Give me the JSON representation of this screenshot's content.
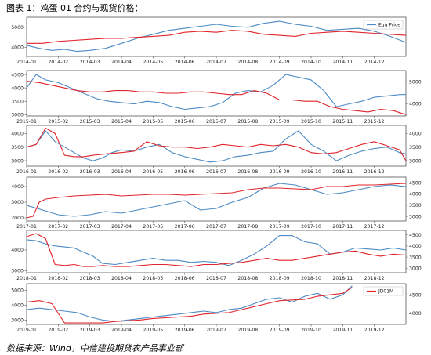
{
  "caption": "图表 1：鸡蛋 01 合约与现货价格：",
  "source": "数据来源：Wind，中信建投期货农产品事业部",
  "colors": {
    "blue": "#4c8ac3",
    "red": "#e0242b",
    "frame": "#555555"
  },
  "chart_data": [
    {
      "type": "line",
      "title": "",
      "xlabel": "",
      "ylabel": "",
      "x_ticks": [
        "2014-01",
        "2014-02",
        "2014-03",
        "2014-04",
        "2014-05",
        "2014-06",
        "2014-07",
        "2014-08",
        "2014-09",
        "2014-10",
        "2014-11",
        "2014-12"
      ],
      "x_range": [
        0,
        12
      ],
      "left_axis": {
        "ticks": [
          4000,
          5000
        ],
        "range": [
          3550,
          5500
        ]
      },
      "right_axis": null,
      "legend": [
        "Egg Price"
      ],
      "legend_location": "top-right",
      "series": [
        {
          "name": "Egg Price",
          "color": "blue",
          "axis": "left",
          "x": [
            0,
            0.4,
            0.8,
            1.2,
            1.6,
            2,
            2.5,
            3,
            3.5,
            4,
            4.5,
            5,
            5.5,
            6,
            6.5,
            7,
            7.5,
            8,
            8.5,
            9,
            9.5,
            10,
            10.5,
            11,
            11.5,
            12
          ],
          "y": [
            4100,
            3950,
            3850,
            3900,
            3800,
            3850,
            3950,
            4200,
            4450,
            4650,
            4850,
            4950,
            5050,
            5150,
            5050,
            5000,
            5200,
            5300,
            5150,
            5050,
            4850,
            4900,
            4950,
            4800,
            4550,
            4250
          ]
        },
        {
          "color": "red",
          "axis": "left",
          "x": [
            0,
            0.5,
            1,
            1.5,
            2,
            2.5,
            3,
            3.5,
            4,
            4.5,
            5,
            5.5,
            6,
            6.5,
            7,
            7.5,
            8,
            8.5,
            9,
            9.5,
            10,
            10.5,
            11,
            11.5,
            12
          ],
          "y": [
            4200,
            4200,
            4300,
            4350,
            4400,
            4450,
            4450,
            4500,
            4550,
            4600,
            4750,
            4800,
            4750,
            4850,
            4800,
            4650,
            4600,
            4550,
            4700,
            4750,
            4800,
            4750,
            4700,
            4650,
            4600
          ]
        }
      ]
    },
    {
      "type": "line",
      "title": "",
      "xlabel": "",
      "ylabel": "",
      "x_ticks": [
        "2015-01",
        "2015-02",
        "2015-03",
        "2015-04",
        "2015-05",
        "2015-06",
        "2015-07",
        "2015-08",
        "2015-09",
        "2015-10",
        "2015-11",
        "2015-12"
      ],
      "x_range": [
        0,
        12
      ],
      "left_axis": {
        "ticks": [
          3000,
          3500,
          4000,
          4500
        ],
        "range": [
          2950,
          4650
        ]
      },
      "right_axis": {
        "ticks": [
          4000,
          5000
        ],
        "range": [
          3450,
          5500
        ]
      },
      "legend": [],
      "series": [
        {
          "color": "blue",
          "axis": "left",
          "x": [
            0,
            0.3,
            0.6,
            1,
            1.4,
            1.8,
            2.2,
            2.6,
            3,
            3.4,
            3.8,
            4.2,
            4.6,
            5,
            5.4,
            5.8,
            6.2,
            6.6,
            7,
            7.4,
            7.8,
            8.2,
            8.6,
            9,
            9.4,
            9.8,
            10.2,
            10.6,
            11,
            11.4,
            11.8,
            12
          ],
          "y": [
            4000,
            4500,
            4300,
            4200,
            4000,
            3800,
            3600,
            3500,
            3450,
            3400,
            3500,
            3450,
            3300,
            3200,
            3250,
            3300,
            3450,
            3800,
            3900,
            3850,
            4100,
            4500,
            4400,
            4300,
            3900,
            3300,
            3400,
            3500,
            3650,
            3700,
            3750,
            3750
          ]
        },
        {
          "color": "red",
          "axis": "left",
          "x": [
            0,
            0.4,
            0.8,
            1.2,
            1.6,
            2,
            2.4,
            2.8,
            3.2,
            3.6,
            4,
            4.4,
            4.8,
            5.2,
            5.6,
            6,
            6.4,
            6.8,
            7.2,
            7.6,
            8,
            8.4,
            8.8,
            9.2,
            9.6,
            10,
            10.4,
            10.8,
            11.2,
            11.6,
            12
          ],
          "y": [
            4250,
            4200,
            4100,
            4000,
            3900,
            3850,
            3850,
            3900,
            3900,
            3850,
            3850,
            3800,
            3800,
            3850,
            3850,
            3800,
            3750,
            3750,
            3900,
            3800,
            3550,
            3550,
            3500,
            3500,
            3300,
            3200,
            3150,
            3100,
            3200,
            3150,
            3000
          ]
        }
      ]
    },
    {
      "type": "line",
      "title": "",
      "xlabel": "",
      "ylabel": "",
      "x_ticks": [
        "2016-01",
        "2016-02",
        "2016-03",
        "2016-04",
        "2016-05",
        "2016-06",
        "2016-07",
        "2016-08",
        "2016-09",
        "2016-10",
        "2016-11",
        "2016-12"
      ],
      "x_range": [
        0,
        12
      ],
      "left_axis": {
        "ticks": [
          3000,
          3500,
          4000
        ],
        "range": [
          2800,
          4300
        ]
      },
      "right_axis": {
        "ticks": [
          3000,
          3500,
          4000
        ],
        "range": [
          2800,
          4300
        ]
      },
      "legend": [],
      "series": [
        {
          "color": "blue",
          "axis": "left",
          "x": [
            0,
            0.3,
            0.6,
            0.9,
            1.2,
            1.5,
            1.8,
            2.1,
            2.4,
            2.7,
            3,
            3.4,
            3.8,
            4.2,
            4.6,
            5,
            5.4,
            5.8,
            6.2,
            6.6,
            7,
            7.4,
            7.8,
            8.2,
            8.6,
            9,
            9.4,
            9.8,
            10.2,
            10.6,
            11,
            11.4,
            11.8,
            12
          ],
          "y": [
            3500,
            3600,
            4100,
            3700,
            3500,
            3300,
            3100,
            3000,
            3100,
            3300,
            3400,
            3350,
            3500,
            3600,
            3300,
            3150,
            3050,
            2950,
            3000,
            3150,
            3200,
            3300,
            3350,
            3800,
            4100,
            3600,
            3350,
            3000,
            3200,
            3350,
            3450,
            3500,
            3300,
            3250
          ]
        },
        {
          "color": "red",
          "axis": "left",
          "x": [
            0,
            0.3,
            0.6,
            0.9,
            1.2,
            1.5,
            1.8,
            2.1,
            2.5,
            3,
            3.4,
            3.8,
            4.2,
            4.6,
            5,
            5.4,
            5.8,
            6.2,
            6.6,
            7,
            7.4,
            7.8,
            8.2,
            8.6,
            9,
            9.4,
            9.8,
            10.2,
            10.6,
            11,
            11.4,
            11.8,
            12
          ],
          "y": [
            3500,
            3600,
            4200,
            4000,
            3200,
            3150,
            3150,
            3200,
            3250,
            3300,
            3350,
            3700,
            3550,
            3500,
            3500,
            3450,
            3500,
            3600,
            3550,
            3500,
            3600,
            3550,
            3600,
            3500,
            3300,
            3250,
            3300,
            3450,
            3600,
            3700,
            3550,
            3400,
            3000
          ]
        }
      ]
    },
    {
      "type": "line",
      "title": "",
      "xlabel": "",
      "ylabel": "",
      "x_ticks": [
        "2017-01",
        "2017-02",
        "2017-03",
        "2017-04",
        "2017-05",
        "2017-06",
        "2017-07",
        "2017-08",
        "2017-09",
        "2017-10",
        "2017-11",
        "2017-12"
      ],
      "x_range": [
        0,
        12
      ],
      "left_axis": {
        "ticks": [
          2000,
          3000,
          4000
        ],
        "range": [
          1800,
          4600
        ]
      },
      "right_axis": {
        "ticks": [
          3000,
          3500,
          4000,
          4500
        ],
        "range": [
          2800,
          4750
        ]
      },
      "legend": [],
      "series": [
        {
          "color": "blue",
          "axis": "left",
          "x": [
            0,
            0.5,
            1,
            1.5,
            2,
            2.5,
            3,
            3.5,
            4,
            4.5,
            5,
            5.5,
            6,
            6.5,
            7,
            7.5,
            8,
            8.5,
            9,
            9.5,
            10,
            10.5,
            11,
            11.5,
            12
          ],
          "y": [
            2800,
            2500,
            2200,
            2100,
            2200,
            2400,
            2300,
            2500,
            2700,
            2900,
            3100,
            2500,
            2600,
            3000,
            3300,
            3900,
            4200,
            4100,
            3800,
            3500,
            3600,
            3800,
            4000,
            4100,
            4000
          ]
        },
        {
          "color": "red",
          "axis": "left",
          "x": [
            0,
            0.2,
            0.4,
            0.6,
            1,
            1.5,
            2,
            2.5,
            3,
            3.5,
            4,
            4.5,
            5,
            5.5,
            6,
            6.5,
            7,
            7.5,
            8,
            8.5,
            9,
            9.5,
            10,
            10.5,
            11,
            11.5,
            12
          ],
          "y": [
            2000,
            2100,
            3000,
            3200,
            3300,
            3400,
            3450,
            3500,
            3400,
            3450,
            3500,
            3500,
            3450,
            3500,
            3550,
            3600,
            3800,
            3900,
            3900,
            3850,
            3800,
            4000,
            4000,
            4100,
            4100,
            4150,
            4200
          ]
        }
      ]
    },
    {
      "type": "line",
      "title": "",
      "xlabel": "",
      "ylabel": "",
      "x_ticks": [
        "2018-01",
        "2018-02",
        "2018-03",
        "2018-04",
        "2018-05",
        "2018-06",
        "2018-07",
        "2018-08",
        "2018-09",
        "2018-10",
        "2018-11",
        "2018-12"
      ],
      "x_range": [
        0,
        12
      ],
      "left_axis": {
        "ticks": [
          3000,
          4000
        ],
        "range": [
          2900,
          4950
        ]
      },
      "right_axis": {
        "ticks": [
          3000,
          3500,
          4000,
          4500
        ],
        "range": [
          2800,
          4700
        ]
      },
      "legend": [],
      "series": [
        {
          "color": "blue",
          "axis": "left",
          "x": [
            0,
            0.3,
            0.6,
            0.9,
            1.2,
            1.5,
            1.8,
            2.1,
            2.4,
            2.8,
            3.2,
            3.6,
            4,
            4.4,
            4.8,
            5.2,
            5.6,
            6,
            6.4,
            6.8,
            7.2,
            7.6,
            8,
            8.4,
            8.8,
            9.2,
            9.6,
            10,
            10.4,
            10.8,
            11.2,
            11.6,
            12
          ],
          "y": [
            4500,
            4450,
            4300,
            4200,
            4150,
            4100,
            3900,
            3700,
            3350,
            3300,
            3400,
            3500,
            3600,
            3500,
            3500,
            3400,
            3450,
            3400,
            3250,
            3500,
            3800,
            4200,
            4700,
            4700,
            4400,
            4300,
            3800,
            3900,
            4100,
            4050,
            4000,
            4100,
            4000
          ]
        },
        {
          "color": "red",
          "axis": "left",
          "x": [
            0,
            0.3,
            0.6,
            0.9,
            1.2,
            1.5,
            1.8,
            2.1,
            2.4,
            2.8,
            3.2,
            3.6,
            4,
            4.4,
            4.8,
            5.2,
            5.6,
            6,
            6.4,
            6.8,
            7.2,
            7.6,
            8,
            8.4,
            8.8,
            9.2,
            9.6,
            10,
            10.4,
            10.8,
            11.2,
            11.6,
            12
          ],
          "y": [
            4650,
            4800,
            4550,
            3300,
            3250,
            3300,
            3200,
            3200,
            3250,
            3200,
            3200,
            3250,
            3300,
            3300,
            3250,
            3200,
            3300,
            3300,
            3350,
            3400,
            3500,
            3600,
            3500,
            3500,
            3600,
            3700,
            3800,
            3900,
            3950,
            3800,
            3700,
            3800,
            3750
          ]
        }
      ]
    },
    {
      "type": "line",
      "title": "",
      "xlabel": "",
      "ylabel": "",
      "x_ticks": [
        "2019-01",
        "2019-02",
        "2019-03",
        "2019-04",
        "2019-05",
        "2019-06",
        "2019-07",
        "2019-08",
        "2019-09",
        "2019-10",
        "2019-11",
        "2019-12"
      ],
      "x_range": [
        0,
        12
      ],
      "left_axis": {
        "ticks": [
          3000,
          4000,
          5000
        ],
        "range": [
          2700,
          5450
        ]
      },
      "right_axis": {
        "ticks": [
          4000,
          4500
        ],
        "range": [
          3700,
          4800
        ]
      },
      "legend": [
        "JD01M"
      ],
      "legend_location": "top-right",
      "series": [
        {
          "color": "blue",
          "axis": "left",
          "x": [
            0,
            0.4,
            0.8,
            1.2,
            1.6,
            2,
            2.4,
            2.8,
            3.2,
            3.6,
            4,
            4.4,
            4.8,
            5.2,
            5.6,
            6,
            6.4,
            6.8,
            7.2,
            7.6,
            8,
            8.4,
            8.8,
            9.2,
            9.6,
            10,
            10.3
          ],
          "y": [
            3700,
            3800,
            3700,
            3600,
            3500,
            3200,
            3000,
            2900,
            3000,
            3100,
            3200,
            3300,
            3400,
            3500,
            3600,
            3500,
            3700,
            3800,
            4100,
            4400,
            4500,
            4200,
            4600,
            4800,
            4400,
            4700,
            5300
          ]
        },
        {
          "name": "JD01M",
          "color": "red",
          "axis": "left",
          "x": [
            0,
            0.4,
            0.8,
            1.2,
            1.6,
            2,
            2.4,
            2.8,
            3.2,
            3.6,
            4,
            4.4,
            4.8,
            5.2,
            5.6,
            6,
            6.4,
            6.8,
            7.2,
            7.6,
            8,
            8.4,
            8.8,
            9.2,
            9.6,
            10,
            10.3
          ],
          "y": [
            4200,
            4300,
            4100,
            2800,
            2800,
            2800,
            2800,
            2900,
            2950,
            3000,
            3100,
            3150,
            3200,
            3250,
            3400,
            3450,
            3500,
            3700,
            3900,
            4100,
            4300,
            4350,
            4400,
            4600,
            4700,
            4800,
            5200
          ]
        }
      ]
    }
  ]
}
